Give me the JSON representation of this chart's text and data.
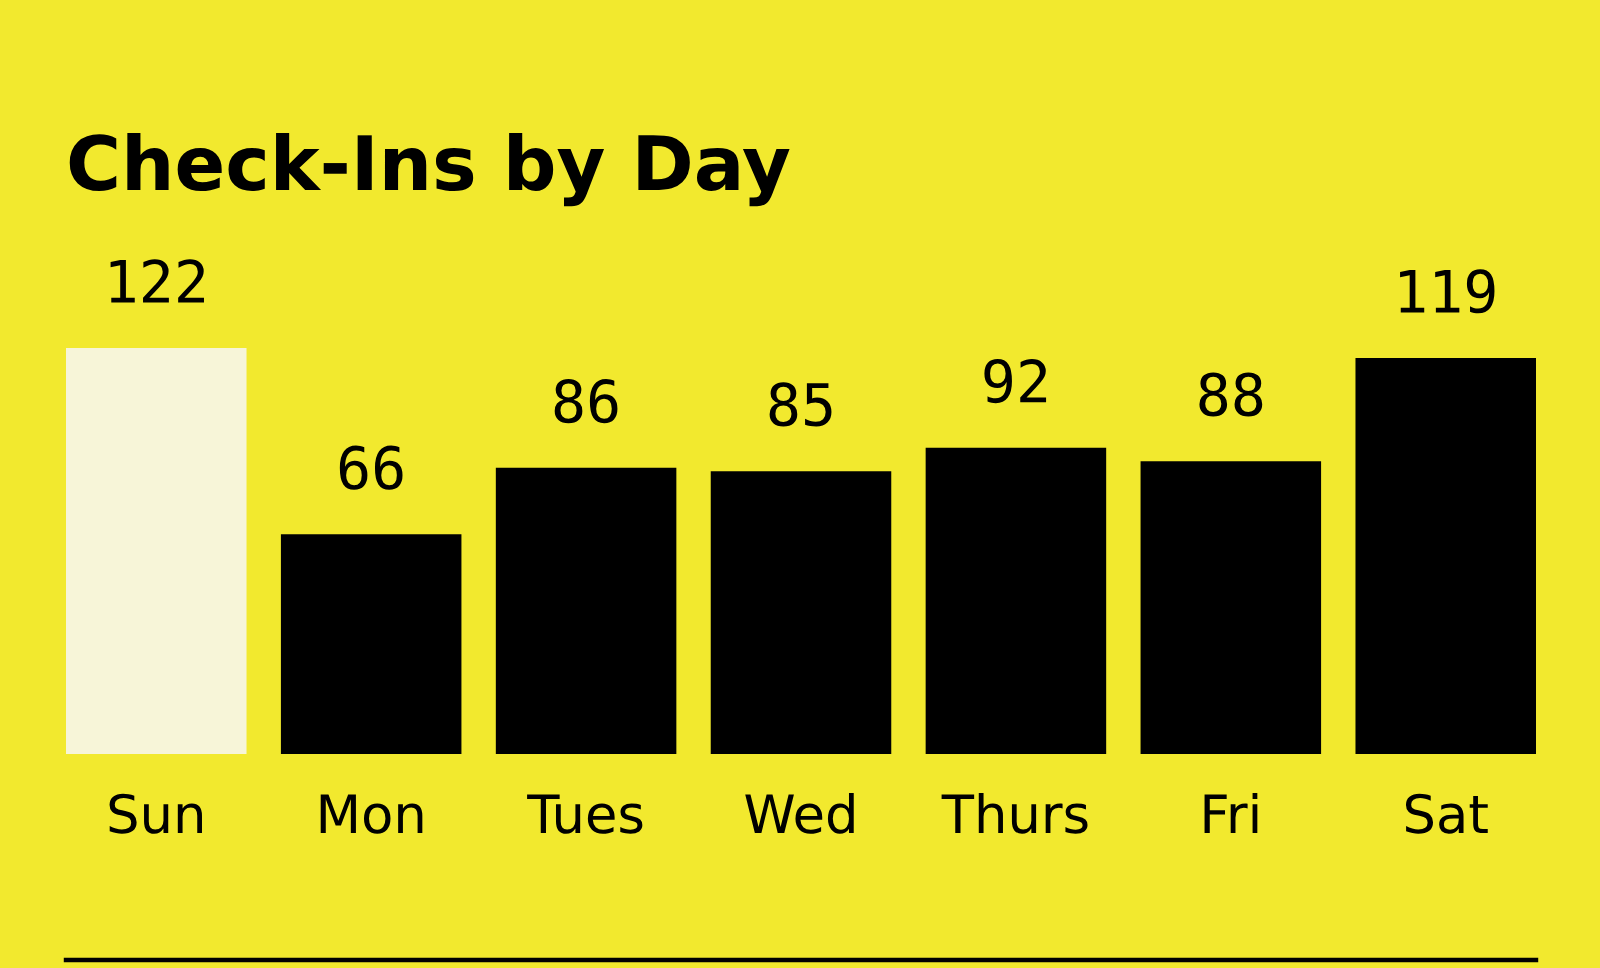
{
  "chart_data": {
    "type": "bar",
    "title": "Check-Ins by Day",
    "categories": [
      "Sun",
      "Mon",
      "Tues",
      "Wed",
      "Thurs",
      "Fri",
      "Sat"
    ],
    "values": [
      122,
      66,
      86,
      85,
      92,
      88,
      119
    ],
    "colors": [
      "#f7f5d8",
      "#000000",
      "#000000",
      "#000000",
      "#000000",
      "#000000",
      "#000000"
    ],
    "data_labels": true
  }
}
